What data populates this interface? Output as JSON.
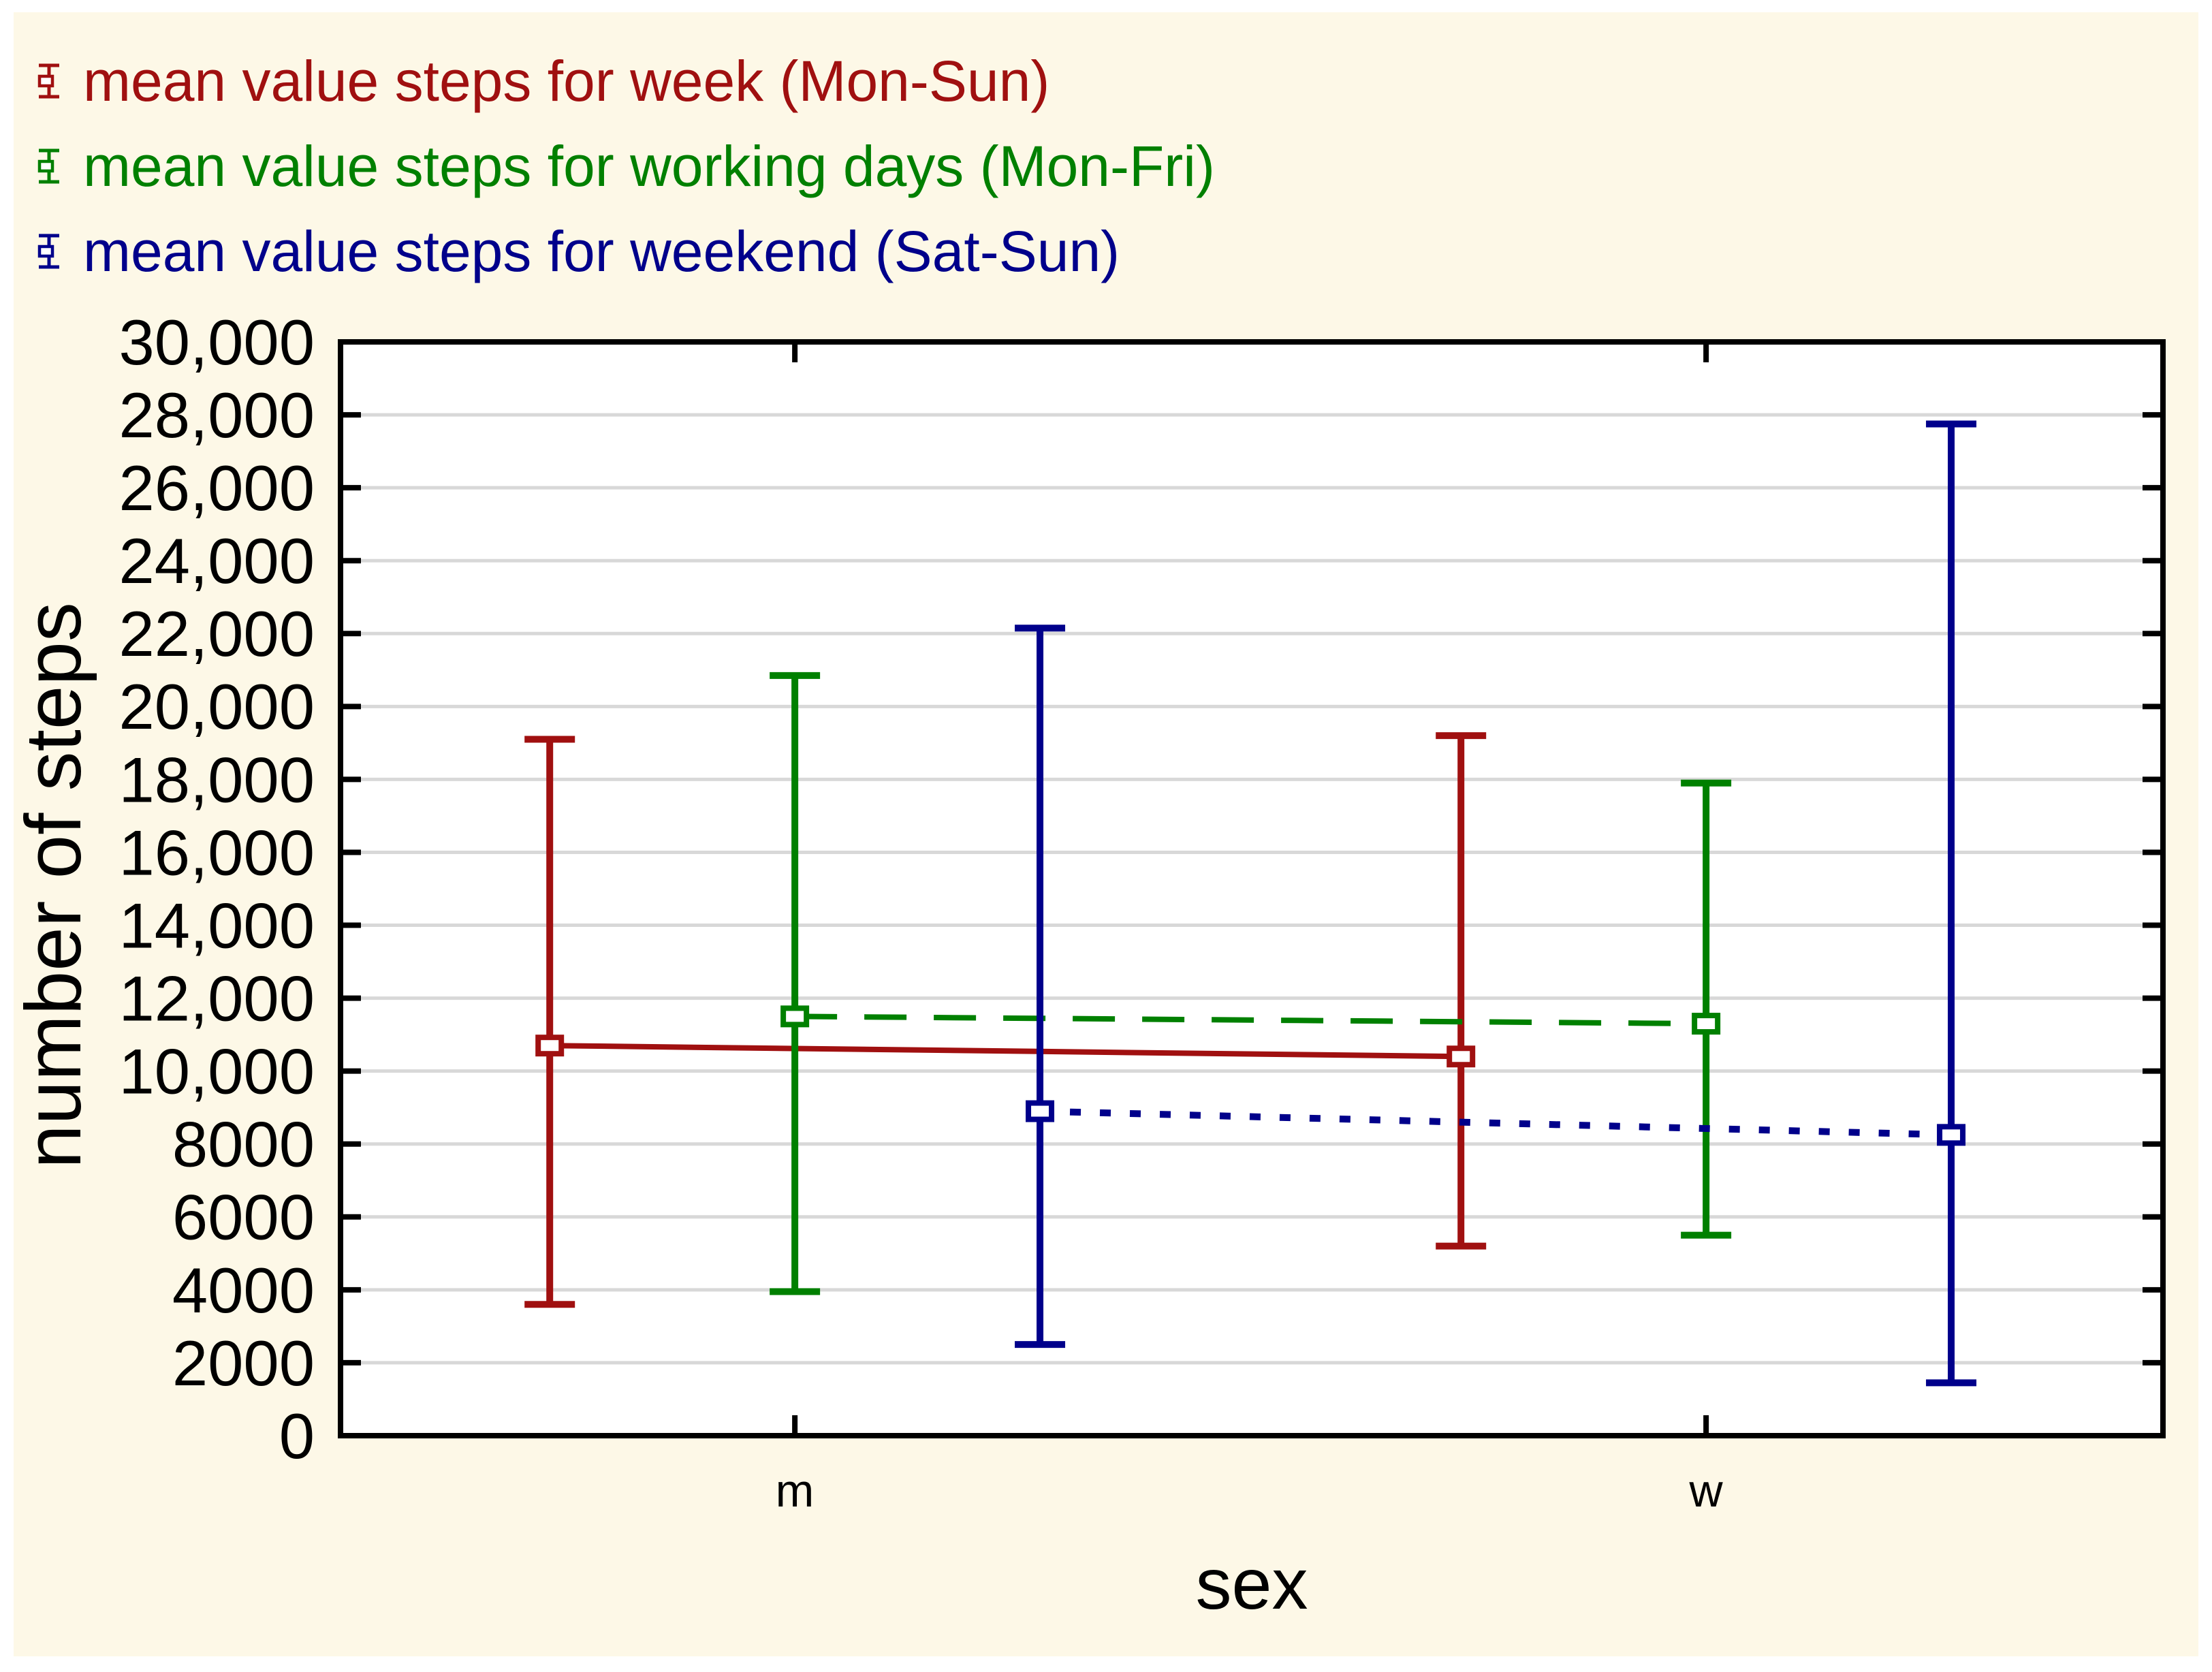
{
  "chart_data": {
    "type": "errorbar",
    "title": "",
    "xlabel": "sex",
    "ylabel": "number of steps",
    "categories": [
      "m",
      "w"
    ],
    "ylim": [
      0,
      30000
    ],
    "y_tick_step": 2000,
    "y_tick_labels": [
      "30,000",
      "28,000",
      "26,000",
      "24,000",
      "22,000",
      "20,000",
      "18,000",
      "16,000",
      "14,000",
      "12,000",
      "10,000",
      "8000",
      "6000",
      "4000",
      "2000",
      "0"
    ],
    "grid": "horizontal",
    "legend_position": "top-left",
    "series": [
      {
        "name": "mean value steps for week (Mon-Sun)",
        "color": "#A01010",
        "line_style": "solid",
        "marker": "open-square",
        "points": [
          {
            "category": "m",
            "mean": 10700,
            "upper": 19100,
            "lower": 3600
          },
          {
            "category": "w",
            "mean": 10400,
            "upper": 19200,
            "lower": 5200
          }
        ]
      },
      {
        "name": "mean value steps for working days (Mon-Fri)",
        "color": "#008000",
        "line_style": "dashed",
        "marker": "open-square",
        "points": [
          {
            "category": "m",
            "mean": 11500,
            "upper": 20850,
            "lower": 3950
          },
          {
            "category": "w",
            "mean": 11300,
            "upper": 17900,
            "lower": 5500
          }
        ]
      },
      {
        "name": "mean value steps for weekend (Sat-Sun)",
        "color": "#00008B",
        "line_style": "dotted",
        "marker": "open-square",
        "points": [
          {
            "category": "m",
            "mean": 8900,
            "upper": 22150,
            "lower": 2500
          },
          {
            "category": "w",
            "mean": 8250,
            "upper": 27750,
            "lower": 1450
          }
        ]
      }
    ],
    "colors": {
      "background": "#FDF8E7",
      "plot_background": "#FFFFFF",
      "grid": "#D8D8D8",
      "frame": "#000000"
    }
  }
}
